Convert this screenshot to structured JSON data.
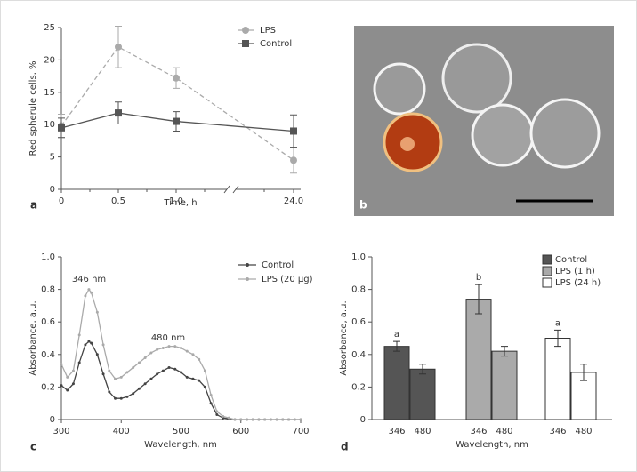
{
  "chart_data": [
    {
      "type": "line",
      "panel_label": "a",
      "ylabel": "Red spherule cells, %",
      "xlabel": "Time, h",
      "categories": [
        "0",
        "0.5",
        "1.0",
        "24.0"
      ],
      "ylim": [
        0,
        25
      ],
      "yticks": [
        0,
        5,
        10,
        15,
        20,
        25
      ],
      "series": [
        {
          "name": "LPS",
          "color": "#aaaaaa",
          "values": [
            9.8,
            22,
            17.2,
            4.5
          ],
          "errors": [
            1.8,
            3.2,
            1.6,
            2
          ]
        },
        {
          "name": "Control",
          "color": "#555555",
          "values": [
            9.5,
            11.8,
            10.5,
            9
          ],
          "errors": [
            1.5,
            1.7,
            1.5,
            2.5
          ]
        }
      ]
    },
    {
      "type": "image",
      "panel_label": "b"
    },
    {
      "type": "spectrum",
      "panel_label": "c",
      "ylabel": "Absorbance, a.u.",
      "xlabel": "Wavelength, nm",
      "xlim": [
        300,
        700
      ],
      "xticks": [
        300,
        400,
        500,
        600,
        700
      ],
      "ylim": [
        0,
        1
      ],
      "yticks": [
        0,
        0.2,
        0.4,
        0.6,
        0.8,
        {
          "value": 1,
          "label": "1.0"
        }
      ],
      "annotations": [
        "346 nm",
        "480 nm"
      ],
      "x": [
        300,
        310,
        320,
        330,
        340,
        346,
        350,
        360,
        370,
        380,
        390,
        400,
        410,
        420,
        430,
        440,
        450,
        460,
        470,
        480,
        490,
        500,
        510,
        520,
        530,
        540,
        550,
        560,
        570,
        580,
        590,
        600,
        610,
        620,
        630,
        640,
        650,
        660,
        670,
        680,
        690,
        700
      ],
      "series": [
        {
          "name": "Control",
          "color": "#444444",
          "values": [
            0.21,
            0.18,
            0.22,
            0.35,
            0.46,
            0.48,
            0.47,
            0.4,
            0.28,
            0.17,
            0.13,
            0.13,
            0.14,
            0.16,
            0.19,
            0.22,
            0.25,
            0.28,
            0.3,
            0.32,
            0.31,
            0.29,
            0.26,
            0.25,
            0.24,
            0.2,
            0.1,
            0.03,
            0.01,
            0.005,
            0,
            0,
            0,
            0,
            0,
            0,
            0,
            0,
            0,
            0,
            0,
            0
          ]
        },
        {
          "name": "LPS (20 µg)",
          "color": "#aaaaaa",
          "values": [
            0.34,
            0.26,
            0.3,
            0.52,
            0.76,
            0.8,
            0.78,
            0.66,
            0.46,
            0.3,
            0.25,
            0.26,
            0.29,
            0.32,
            0.35,
            0.38,
            0.41,
            0.43,
            0.44,
            0.45,
            0.45,
            0.44,
            0.42,
            0.4,
            0.37,
            0.3,
            0.15,
            0.05,
            0.02,
            0.01,
            0,
            0,
            0,
            0,
            0,
            0,
            0,
            0,
            0,
            0,
            0,
            0
          ]
        }
      ]
    },
    {
      "type": "bar",
      "panel_label": "d",
      "ylabel": "Absorbance, a.u.",
      "xlabel": "Wavelength, nm",
      "categories": [
        "346",
        "480"
      ],
      "ylim": [
        0,
        1
      ],
      "yticks": [
        0,
        0.2,
        0.4,
        0.6,
        0.8,
        {
          "value": 1,
          "label": "1.0"
        }
      ],
      "series": [
        {
          "name": "Control",
          "color": "#555555",
          "values": [
            0.45,
            0.31
          ],
          "errors": [
            0.03,
            0.03
          ],
          "letter": "a"
        },
        {
          "name": "LPS (1 h)",
          "color": "#aaaaaa",
          "values": [
            0.74,
            0.42
          ],
          "errors": [
            0.09,
            0.03
          ],
          "letter": "b"
        },
        {
          "name": "LPS (24 h)",
          "color": "#ffffff",
          "values": [
            0.5,
            0.29
          ],
          "errors": [
            0.05,
            0.05
          ],
          "letter": "a"
        }
      ]
    }
  ]
}
